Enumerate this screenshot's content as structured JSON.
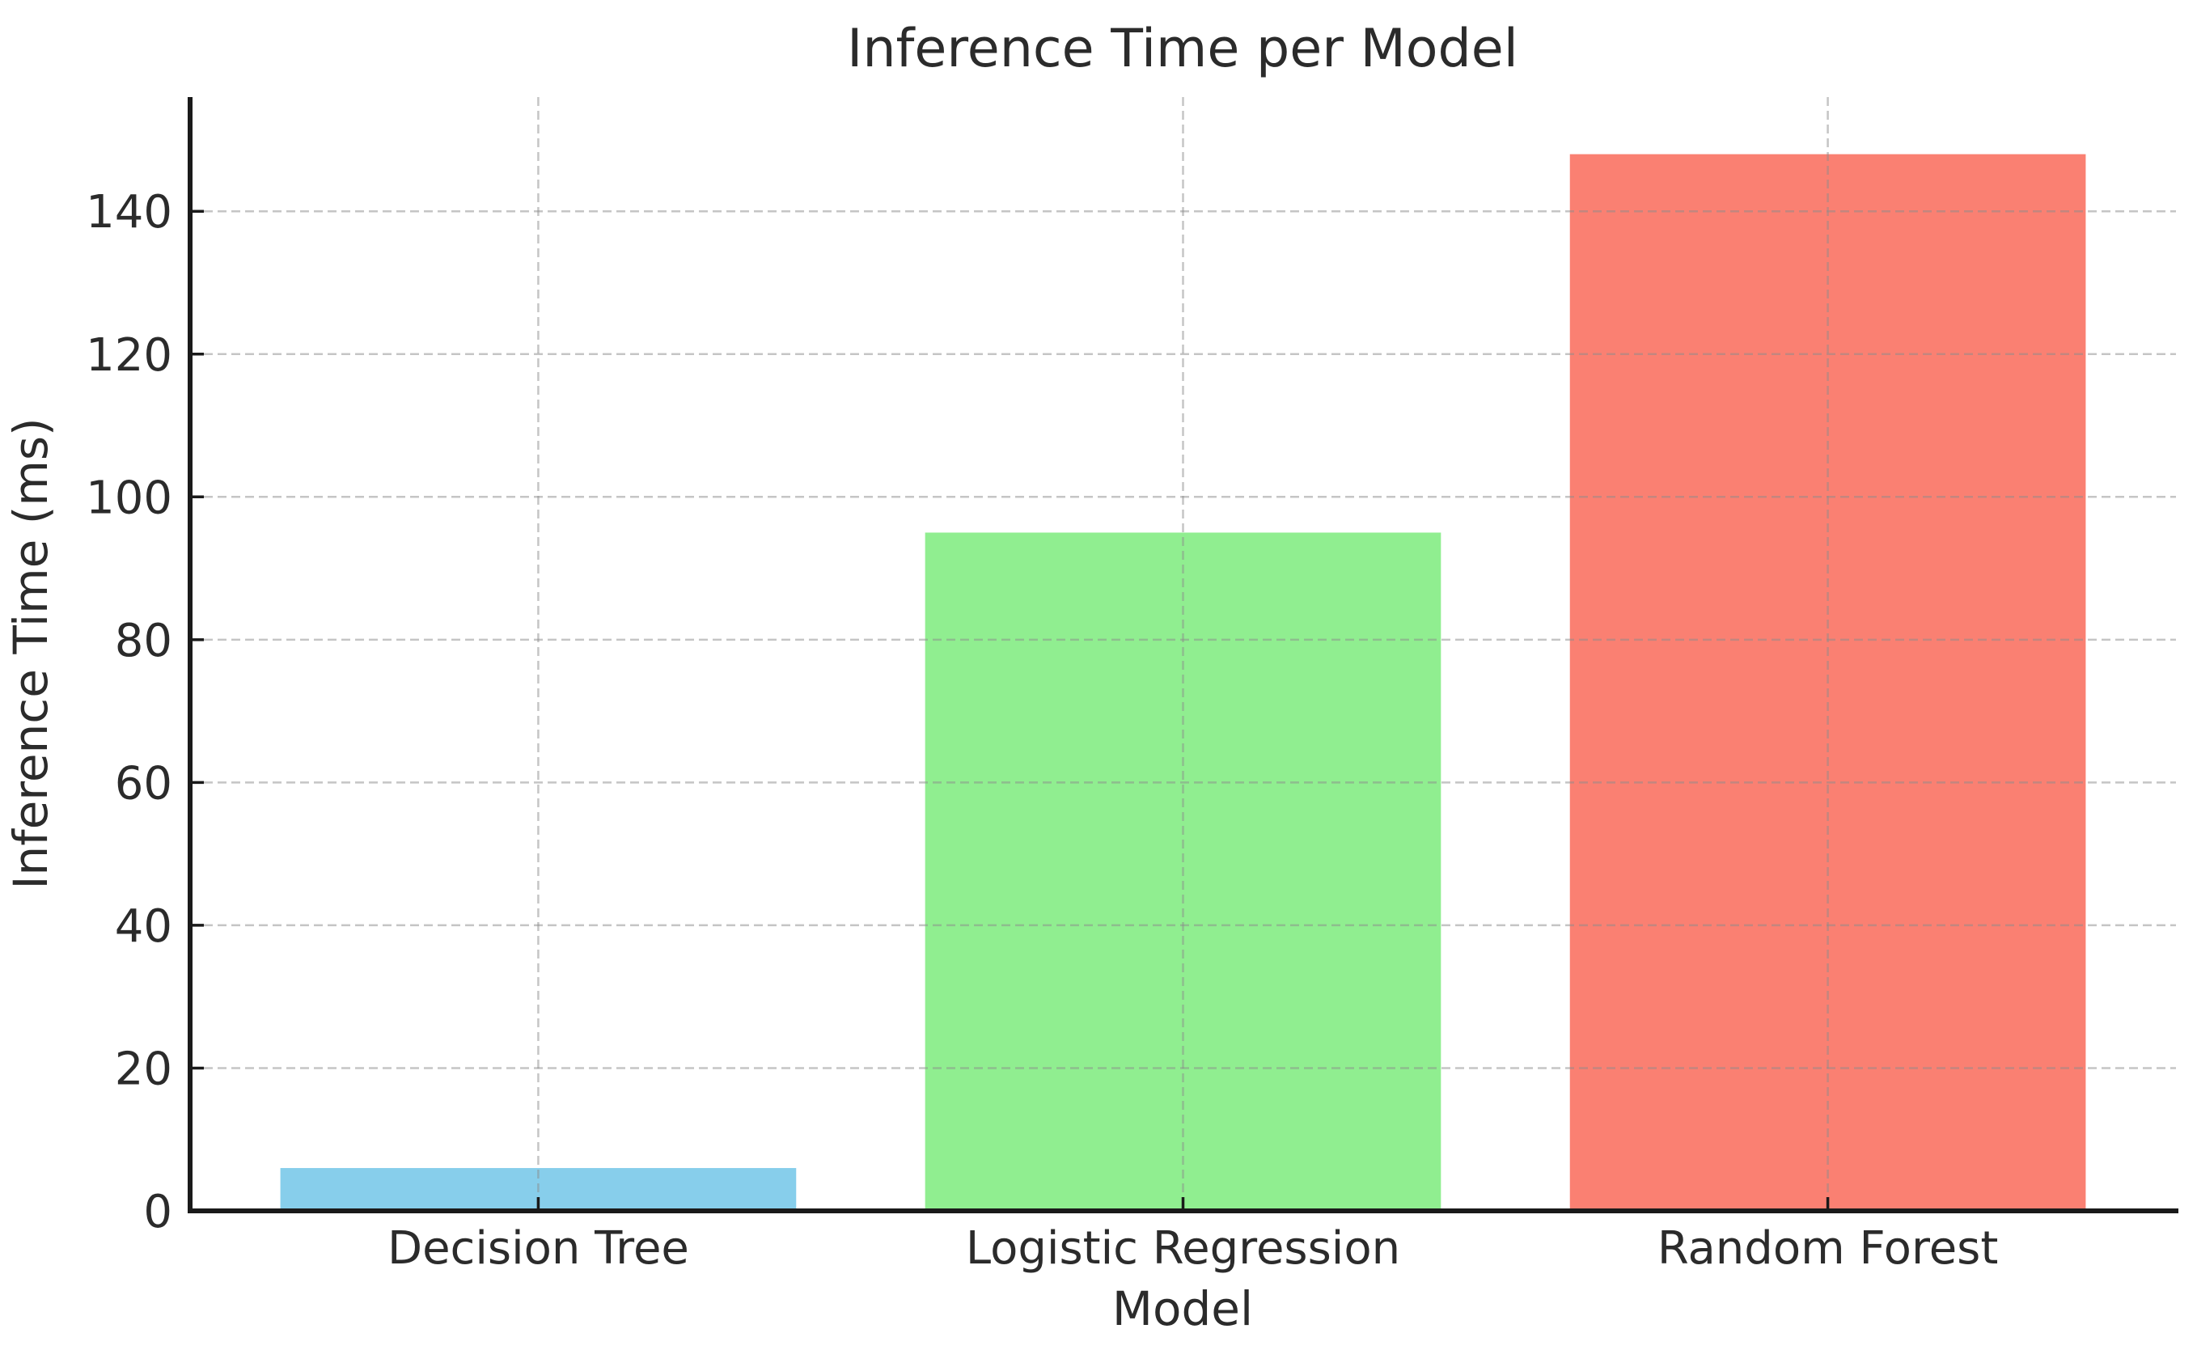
{
  "chart_data": {
    "type": "bar",
    "title": "Inference Time per Model",
    "xlabel": "Model",
    "ylabel": "Inference Time (ms)",
    "categories": [
      "Decision Tree",
      "Logistic Regression",
      "Random Forest"
    ],
    "values": [
      6,
      95,
      148
    ],
    "bar_colors": [
      "#87CEEB",
      "#90EE90",
      "#FA8072"
    ],
    "ylim": [
      0,
      156
    ],
    "yticks": [
      0,
      20,
      40,
      60,
      80,
      100,
      120,
      140
    ],
    "legend": "none",
    "grid": {
      "horizontal": true,
      "vertical": true,
      "style": "dashed",
      "color": "#8c8c8c",
      "opacity": 0.5,
      "drawn_over_bars": true
    },
    "background_color": "#ffffff",
    "text_color": "#2b2b2b",
    "axis_color": "#1a1a1a",
    "bar_width_fraction": 0.8,
    "tick_direction": "in"
  }
}
